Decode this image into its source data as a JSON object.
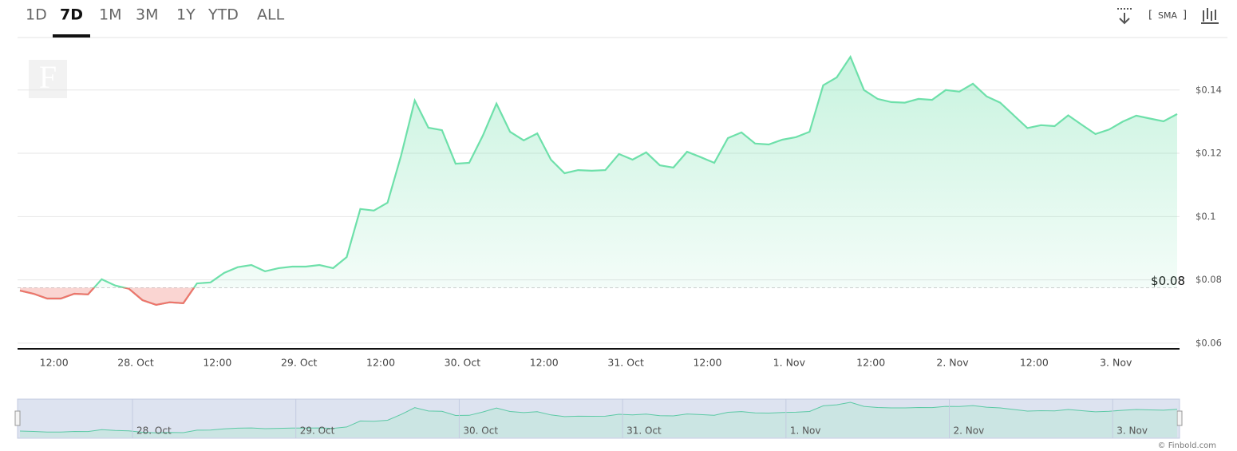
{
  "chart_data": {
    "type": "line",
    "ranges": [
      "1D",
      "7D",
      "1M",
      "3M",
      "1Y",
      "YTD",
      "ALL"
    ],
    "active_range": "7D",
    "indicator_label": "SMA",
    "logo": "F",
    "credit": "© Finbold.com",
    "color": "#6ee0aa",
    "below_color": "#f0736b",
    "baseline": 0.0775,
    "baseline_label": "$0.08",
    "grid": true,
    "values": [
      0.0766,
      0.0756,
      0.0741,
      0.0741,
      0.0756,
      0.0754,
      0.0802,
      0.0782,
      0.0772,
      0.0736,
      0.0721,
      0.0729,
      0.0726,
      0.0789,
      0.0792,
      0.0822,
      0.084,
      0.0847,
      0.0827,
      0.0837,
      0.0842,
      0.0842,
      0.0847,
      0.0837,
      0.0872,
      0.1024,
      0.1019,
      0.1044,
      0.1193,
      0.1367,
      0.1281,
      0.1273,
      0.1167,
      0.117,
      0.1256,
      0.1357,
      0.1268,
      0.1241,
      0.1263,
      0.118,
      0.1137,
      0.1147,
      0.1145,
      0.1147,
      0.1198,
      0.118,
      0.1203,
      0.1162,
      0.1155,
      0.1205,
      0.1188,
      0.117,
      0.1248,
      0.1266,
      0.1231,
      0.1228,
      0.1243,
      0.1251,
      0.1268,
      0.1415,
      0.144,
      0.1505,
      0.14,
      0.1372,
      0.1362,
      0.136,
      0.1372,
      0.1369,
      0.14,
      0.1395,
      0.142,
      0.138,
      0.136,
      0.132,
      0.128,
      0.1289,
      0.1286,
      0.132,
      0.129,
      0.1261,
      0.1275,
      0.13,
      0.1319,
      0.131,
      0.1301,
      0.1324
    ],
    "xlim": [
      0,
      85
    ],
    "xticks": [
      {
        "value": 2.5,
        "label": "12:00"
      },
      {
        "value": 8.5,
        "label": "28. Oct"
      },
      {
        "value": 14.5,
        "label": "12:00"
      },
      {
        "value": 20.5,
        "label": "29. Oct"
      },
      {
        "value": 26.5,
        "label": "12:00"
      },
      {
        "value": 32.5,
        "label": "30. Oct"
      },
      {
        "value": 38.5,
        "label": "12:00"
      },
      {
        "value": 44.5,
        "label": "31. Oct"
      },
      {
        "value": 50.5,
        "label": "12:00"
      },
      {
        "value": 56.5,
        "label": "1. Nov"
      },
      {
        "value": 62.5,
        "label": "12:00"
      },
      {
        "value": 68.5,
        "label": "2. Nov"
      },
      {
        "value": 74.5,
        "label": "12:00"
      },
      {
        "value": 80.5,
        "label": "3. Nov"
      }
    ],
    "ylim": [
      0.0582,
      0.1566
    ],
    "yticks": [
      {
        "value": 0.06,
        "label": "$0.06"
      },
      {
        "value": 0.08,
        "label": "$0.08"
      },
      {
        "value": 0.1,
        "label": "$0.1"
      },
      {
        "value": 0.12,
        "label": "$0.12"
      },
      {
        "value": 0.14,
        "label": "$0.14"
      }
    ]
  }
}
